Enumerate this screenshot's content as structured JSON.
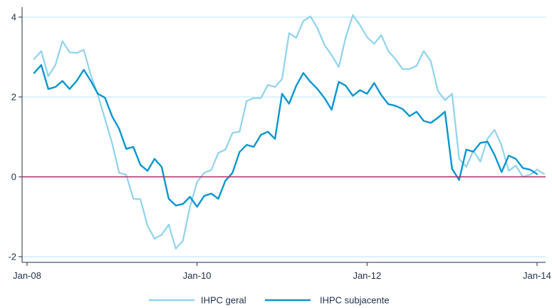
{
  "chart_data": {
    "type": "line",
    "title": "",
    "xlabel": "",
    "ylabel": "",
    "x_start": "2008-02",
    "x_ticks": [
      {
        "label": "Jan-08",
        "date": "2008-01"
      },
      {
        "label": "Jan-10",
        "date": "2010-01"
      },
      {
        "label": "Jan-12",
        "date": "2012-01"
      },
      {
        "label": "Jan-14",
        "date": "2014-01"
      }
    ],
    "y_ticks": [
      {
        "label": "-2",
        "value": -2
      },
      {
        "label": "0",
        "value": 0
      },
      {
        "label": "2",
        "value": 2
      },
      {
        "label": "4",
        "value": 4
      }
    ],
    "xlim": [
      "2008-01",
      "2014-01"
    ],
    "ylim": [
      -2.1,
      4.15
    ],
    "grid": "horizontal",
    "reference_line": {
      "value": 0,
      "color": "#b0306a"
    },
    "legend": {
      "position": "bottom"
    },
    "series": [
      {
        "name": "IHPC geral",
        "color": "#8fd3ee",
        "values": [
          2.95,
          3.15,
          2.52,
          2.8,
          3.4,
          3.12,
          3.1,
          3.18,
          2.55,
          2.05,
          1.45,
          0.85,
          0.1,
          0.05,
          -0.55,
          -0.56,
          -1.22,
          -1.55,
          -1.45,
          -1.2,
          -1.8,
          -1.6,
          -0.75,
          -0.13,
          0.1,
          0.17,
          0.6,
          0.68,
          1.1,
          1.13,
          1.9,
          1.97,
          1.97,
          2.3,
          2.25,
          2.45,
          3.6,
          3.48,
          3.9,
          4.02,
          3.72,
          3.3,
          3.05,
          2.75,
          3.5,
          4.05,
          3.8,
          3.5,
          3.33,
          3.55,
          3.15,
          2.95,
          2.7,
          2.7,
          2.78,
          3.15,
          2.9,
          2.15,
          1.92,
          2.08,
          0.45,
          0.25,
          0.65,
          0.38,
          0.95,
          1.18,
          0.78,
          0.15,
          0.28,
          0.0,
          0.05,
          0.18,
          0.07
        ]
      },
      {
        "name": "IHPC subjacente",
        "color": "#0a96cf",
        "values": [
          2.6,
          2.8,
          2.2,
          2.25,
          2.4,
          2.2,
          2.4,
          2.68,
          2.4,
          2.08,
          1.98,
          1.52,
          1.2,
          0.7,
          0.75,
          0.3,
          0.15,
          0.45,
          0.25,
          -0.55,
          -0.72,
          -0.68,
          -0.5,
          -0.75,
          -0.48,
          -0.42,
          -0.55,
          -0.1,
          0.1,
          0.62,
          0.8,
          0.75,
          1.05,
          1.13,
          0.95,
          2.08,
          1.83,
          2.28,
          2.6,
          2.38,
          2.2,
          1.97,
          1.68,
          2.38,
          2.28,
          2.03,
          2.17,
          2.08,
          2.35,
          2.05,
          1.82,
          1.78,
          1.7,
          1.52,
          1.63,
          1.4,
          1.35,
          1.48,
          1.63,
          0.2,
          -0.08,
          0.68,
          0.63,
          0.85,
          0.88,
          0.55,
          0.12,
          0.53,
          0.45,
          0.22,
          0.18,
          0.07
        ]
      }
    ]
  }
}
